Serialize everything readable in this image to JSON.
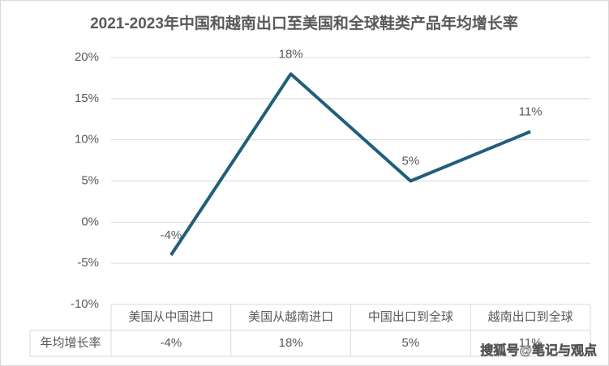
{
  "chart_data": {
    "type": "line",
    "title": "2021-2023年中国和越南出口至美国和全球鞋类产品年均增长率",
    "categories": [
      "美国从中国进口",
      "美国从越南进口",
      "中国出口到全球",
      "越南出口到全球"
    ],
    "series": [
      {
        "name": "年均增长率",
        "color": "#215e7c",
        "values": [
          -4,
          18,
          5,
          11
        ],
        "value_labels": [
          "-4%",
          "18%",
          "5%",
          "11%"
        ]
      }
    ],
    "ylim": [
      -10,
      20
    ],
    "yticks": [
      {
        "value": -10,
        "label": "-10%"
      },
      {
        "value": -5,
        "label": "-5%"
      },
      {
        "value": 0,
        "label": "0%"
      },
      {
        "value": 5,
        "label": "5%"
      },
      {
        "value": 10,
        "label": "10%"
      },
      {
        "value": 15,
        "label": "15%"
      },
      {
        "value": 20,
        "label": "20%"
      }
    ],
    "grid": true
  },
  "watermark": "搜狐号@笔记与观点"
}
